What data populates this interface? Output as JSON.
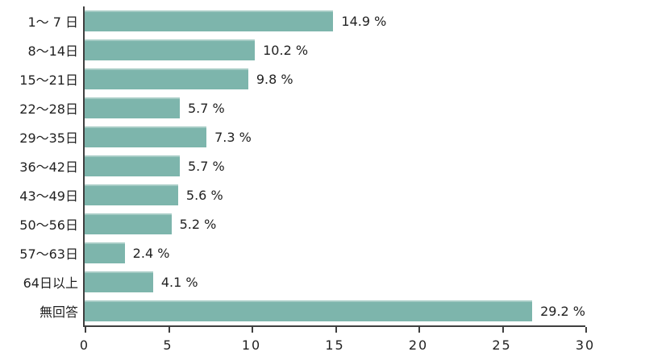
{
  "chart_data": {
    "type": "bar",
    "orientation": "horizontal",
    "title": "",
    "xlabel": "",
    "ylabel": "",
    "categories": [
      "1～ 7 日",
      "8～14日",
      "15～21日",
      "22～28日",
      "29～35日",
      "36～42日",
      "43～49日",
      "50～56日",
      "57～63日",
      "64日以上",
      "無回答"
    ],
    "values": [
      14.9,
      10.2,
      9.8,
      5.7,
      7.3,
      5.7,
      5.6,
      5.2,
      2.4,
      4.1,
      29.2
    ],
    "value_labels": [
      "14.9 %",
      "10.2 %",
      "9.8 %",
      "5.7 %",
      "7.3 %",
      "5.7 %",
      "5.6 %",
      "5.2 %",
      "2.4 %",
      "4.1 %",
      "29.2 %"
    ],
    "x_ticks": [
      0,
      5,
      10,
      15,
      20,
      25,
      30
    ],
    "xlim": [
      0,
      30
    ],
    "grid": false,
    "legend": null,
    "colors": {
      "bar": "#7db5ac",
      "bar_highlight": "#a6ccc5",
      "axis": "#3f3f3f",
      "text": "#222222",
      "background": "#ffffff"
    }
  }
}
